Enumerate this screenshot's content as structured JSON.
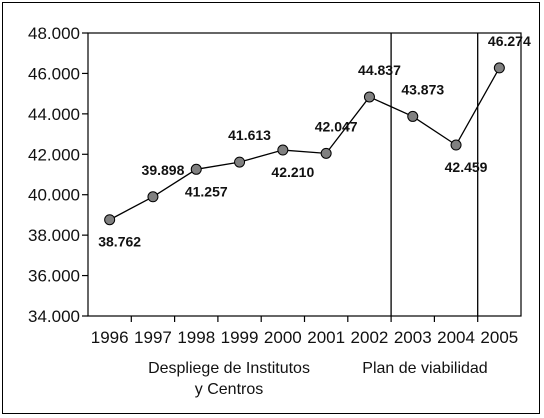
{
  "chart_data": {
    "type": "line",
    "title": "",
    "xlabel": "",
    "ylabel": "",
    "x": [
      "1996",
      "1997",
      "1998",
      "1999",
      "2000",
      "2001",
      "2002",
      "2003",
      "2004",
      "2005"
    ],
    "values": [
      38762,
      39898,
      41257,
      41613,
      42210,
      42047,
      44837,
      43873,
      42459,
      46274
    ],
    "data_labels": [
      "38.762",
      "39.898",
      "41.257",
      "41.613",
      "42.210",
      "42.047",
      "44.837",
      "43.873",
      "42.459",
      "46.274"
    ],
    "ylim": [
      34000,
      48000
    ],
    "yticks": [
      34000,
      36000,
      38000,
      40000,
      42000,
      44000,
      46000,
      48000
    ],
    "ytick_labels": [
      "34.000",
      "36.000",
      "38.000",
      "40.000",
      "42.000",
      "44.000",
      "46.000",
      "48.000"
    ],
    "grid": false,
    "legend": "none",
    "marker_color": "#808080",
    "line_color": "#000000",
    "annotations": {
      "lines_after": [
        "2002",
        "2004"
      ],
      "notes": [
        "Despliege de Institutos",
        "y  Centros",
        "Plan de viabilidad"
      ]
    }
  }
}
